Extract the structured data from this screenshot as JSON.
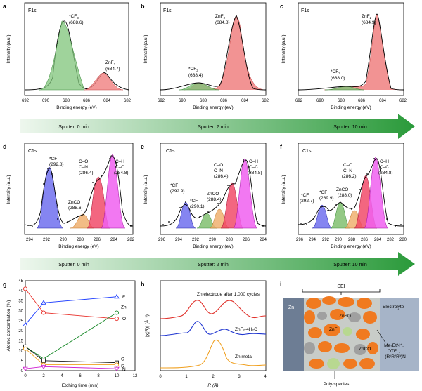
{
  "panels": {
    "a": {
      "letter": "a",
      "label": "F1s",
      "peaks": [
        {
          "name": "*CF",
          "sub": "3",
          "pos": "(688.6)"
        },
        {
          "name": "ZnF",
          "sub": "2",
          "pos": "(684.7)"
        }
      ]
    },
    "b": {
      "letter": "b",
      "label": "F1s",
      "peaks": [
        {
          "name": "*CF",
          "sub": "3",
          "pos": "(688.4)"
        },
        {
          "name": "ZnF",
          "sub": "2",
          "pos": "(684.8)"
        }
      ]
    },
    "c": {
      "letter": "c",
      "label": "F1s",
      "peaks": [
        {
          "name": "*CF",
          "sub": "3",
          "pos": "(688.0)"
        },
        {
          "name": "ZnF",
          "sub": "2",
          "pos": "(684.9)"
        }
      ]
    },
    "d": {
      "letter": "d",
      "label": "C1s",
      "peaks": [
        "*CF",
        "(292.8)",
        "ZnCO",
        "(288.6)",
        "C–O",
        "C–N",
        "(286.4)",
        "C–H",
        "C–C",
        "(284.8)"
      ]
    },
    "e": {
      "letter": "e",
      "label": "C1s",
      "peaks": [
        "*CF",
        "(292.9)",
        "*CF",
        "(290.1)",
        "ZnCO",
        "(288.4)",
        "C–O",
        "C–N",
        "(286.4)",
        "C–H",
        "C–C",
        "(284.8)"
      ]
    },
    "f": {
      "letter": "f",
      "label": "C1s",
      "peaks": [
        "*CF",
        "(292.7)",
        "*CF",
        "(289.9)",
        "ZnCO",
        "(288.0)",
        "C–O",
        "C–N",
        "(286.2)",
        "C–H",
        "C–C",
        "(284.8)"
      ]
    },
    "g": {
      "letter": "g",
      "ylabel": "Atomic concentration (%)",
      "xlabel": "Etching time (min)"
    },
    "h": {
      "letter": "h",
      "xlabel": "R (Å)",
      "ylabel": "|χ(R)| (Å⁻³)",
      "traces": [
        "Zn electrode after 1,000 cycles",
        "ZnF₂·4H₂O",
        "Zn metal"
      ]
    },
    "i": {
      "letter": "i",
      "labels": {
        "sei": "SEI",
        "zn": "Zn",
        "electrolyte": "Electrolyte",
        "znso": "ZnSO",
        "znf2": "ZnF",
        "znco": "ZnCO",
        "ions": "Me₃EtN⁺,",
        "ions2": "OTF⁻,",
        "ions3": "(R¹R²R³)N",
        "poly": "Poly-species"
      }
    }
  },
  "common": {
    "intensity": "Intensity (a.u.)",
    "binding": "Binding energy (eV)"
  },
  "sputter": {
    "top": [
      "Sputter: 0 min",
      "Sputter: 2 min",
      "Sputter: 10 min"
    ],
    "bottom": [
      "Sputter: 0 min",
      "Sputter: 2 min",
      "Sputter: 10 min"
    ]
  },
  "chart_data": [
    {
      "type": "line",
      "panel": "g",
      "title": "",
      "xlabel": "Etching time (min)",
      "ylabel": "Atomic concentration (%)",
      "xlim": [
        0,
        12
      ],
      "ylim": [
        0,
        45
      ],
      "x": [
        0,
        2,
        10
      ],
      "series": [
        {
          "name": "F",
          "values": [
            23,
            34,
            37
          ],
          "color": "#1f3fff"
        },
        {
          "name": "O",
          "values": [
            41,
            29,
            26
          ],
          "color": "#e8312b"
        },
        {
          "name": "Zn",
          "values": [
            12,
            6,
            29
          ],
          "color": "#1a8a2a"
        },
        {
          "name": "C",
          "values": [
            12,
            5,
            4
          ],
          "color": "#1a1a1a"
        },
        {
          "name": "S",
          "values": [
            11,
            3,
            3
          ],
          "color": "#f0a020"
        },
        {
          "name": "N",
          "values": [
            1,
            2,
            1
          ],
          "color": "#d020d0"
        }
      ],
      "xticks": [
        0,
        2,
        4,
        6,
        8,
        10,
        12
      ],
      "yticks": [
        0,
        5,
        10,
        15,
        20,
        25,
        30,
        35,
        40,
        45
      ]
    },
    {
      "type": "line",
      "panel": "h",
      "xlabel": "R (Å)",
      "xlim": [
        0,
        4
      ],
      "xticks": [
        0,
        1,
        2,
        3,
        4
      ],
      "series": [
        {
          "name": "Zn electrode after 1,000 cycles",
          "color": "#e0302a"
        },
        {
          "name": "ZnF₂·4H₂O",
          "color": "#2036d0"
        },
        {
          "name": "Zn metal",
          "color": "#f0a020"
        }
      ]
    }
  ],
  "axes": {
    "f1s_ticks": [
      "692",
      "690",
      "688",
      "686",
      "684",
      "682"
    ],
    "c1s_d_ticks": [
      "294",
      "292",
      "290",
      "288",
      "286",
      "284",
      "282"
    ],
    "c1s_e_ticks": [
      "296",
      "294",
      "292",
      "290",
      "288",
      "286",
      "284"
    ],
    "c1s_f_ticks": [
      "296",
      "294",
      "292",
      "290",
      "288",
      "286",
      "284",
      "282",
      "280"
    ]
  }
}
